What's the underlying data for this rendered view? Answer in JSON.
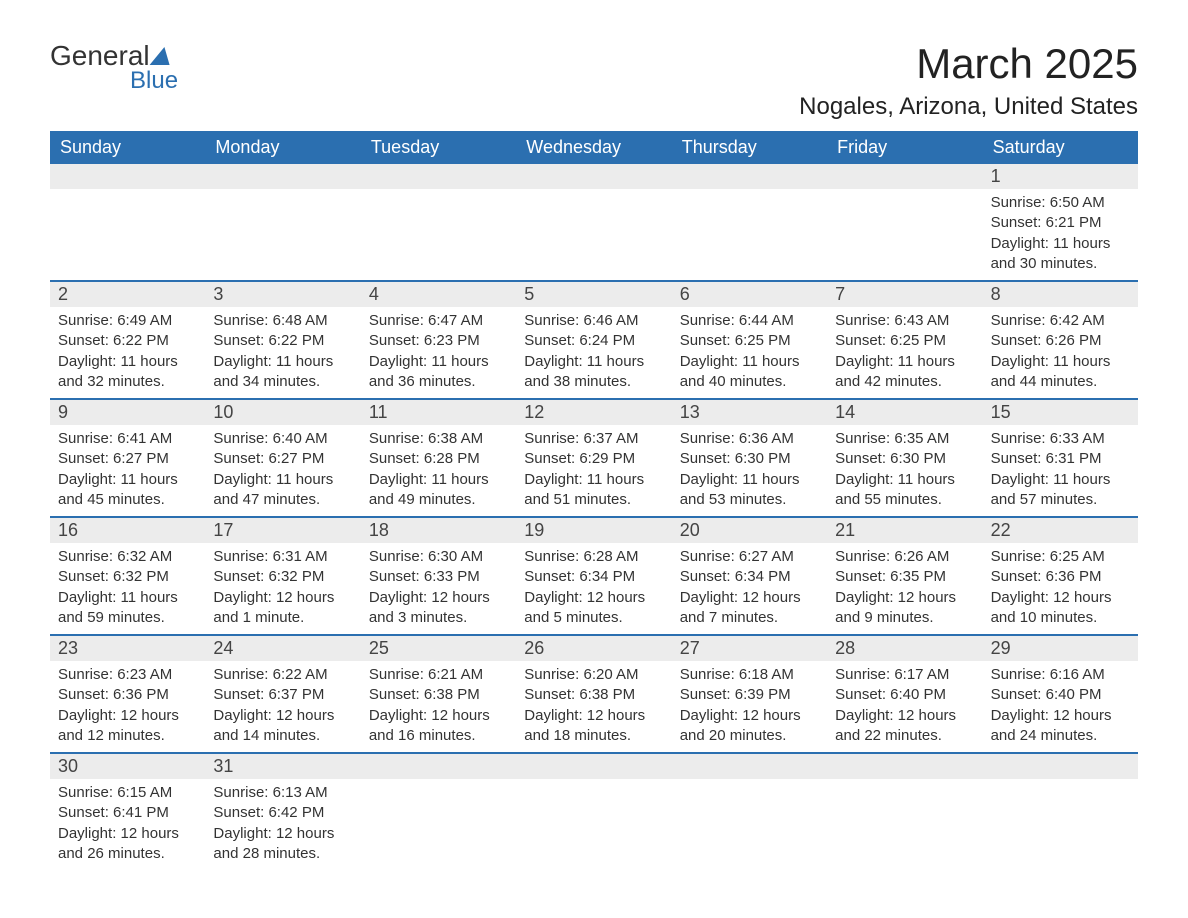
{
  "logo": {
    "text_top": "General",
    "text_bottom": "Blue"
  },
  "header": {
    "month_title": "March 2025",
    "location": "Nogales, Arizona, United States"
  },
  "colors": {
    "header_bg": "#2b6fb0",
    "header_text": "#ffffff",
    "day_num_bg": "#ececec",
    "text": "#333333",
    "border": "#2b6fb0"
  },
  "day_names": [
    "Sunday",
    "Monday",
    "Tuesday",
    "Wednesday",
    "Thursday",
    "Friday",
    "Saturday"
  ],
  "weeks": [
    [
      {
        "num": "",
        "sunrise": "",
        "sunset": "",
        "daylight": ""
      },
      {
        "num": "",
        "sunrise": "",
        "sunset": "",
        "daylight": ""
      },
      {
        "num": "",
        "sunrise": "",
        "sunset": "",
        "daylight": ""
      },
      {
        "num": "",
        "sunrise": "",
        "sunset": "",
        "daylight": ""
      },
      {
        "num": "",
        "sunrise": "",
        "sunset": "",
        "daylight": ""
      },
      {
        "num": "",
        "sunrise": "",
        "sunset": "",
        "daylight": ""
      },
      {
        "num": "1",
        "sunrise": "Sunrise: 6:50 AM",
        "sunset": "Sunset: 6:21 PM",
        "daylight": "Daylight: 11 hours and 30 minutes."
      }
    ],
    [
      {
        "num": "2",
        "sunrise": "Sunrise: 6:49 AM",
        "sunset": "Sunset: 6:22 PM",
        "daylight": "Daylight: 11 hours and 32 minutes."
      },
      {
        "num": "3",
        "sunrise": "Sunrise: 6:48 AM",
        "sunset": "Sunset: 6:22 PM",
        "daylight": "Daylight: 11 hours and 34 minutes."
      },
      {
        "num": "4",
        "sunrise": "Sunrise: 6:47 AM",
        "sunset": "Sunset: 6:23 PM",
        "daylight": "Daylight: 11 hours and 36 minutes."
      },
      {
        "num": "5",
        "sunrise": "Sunrise: 6:46 AM",
        "sunset": "Sunset: 6:24 PM",
        "daylight": "Daylight: 11 hours and 38 minutes."
      },
      {
        "num": "6",
        "sunrise": "Sunrise: 6:44 AM",
        "sunset": "Sunset: 6:25 PM",
        "daylight": "Daylight: 11 hours and 40 minutes."
      },
      {
        "num": "7",
        "sunrise": "Sunrise: 6:43 AM",
        "sunset": "Sunset: 6:25 PM",
        "daylight": "Daylight: 11 hours and 42 minutes."
      },
      {
        "num": "8",
        "sunrise": "Sunrise: 6:42 AM",
        "sunset": "Sunset: 6:26 PM",
        "daylight": "Daylight: 11 hours and 44 minutes."
      }
    ],
    [
      {
        "num": "9",
        "sunrise": "Sunrise: 6:41 AM",
        "sunset": "Sunset: 6:27 PM",
        "daylight": "Daylight: 11 hours and 45 minutes."
      },
      {
        "num": "10",
        "sunrise": "Sunrise: 6:40 AM",
        "sunset": "Sunset: 6:27 PM",
        "daylight": "Daylight: 11 hours and 47 minutes."
      },
      {
        "num": "11",
        "sunrise": "Sunrise: 6:38 AM",
        "sunset": "Sunset: 6:28 PM",
        "daylight": "Daylight: 11 hours and 49 minutes."
      },
      {
        "num": "12",
        "sunrise": "Sunrise: 6:37 AM",
        "sunset": "Sunset: 6:29 PM",
        "daylight": "Daylight: 11 hours and 51 minutes."
      },
      {
        "num": "13",
        "sunrise": "Sunrise: 6:36 AM",
        "sunset": "Sunset: 6:30 PM",
        "daylight": "Daylight: 11 hours and 53 minutes."
      },
      {
        "num": "14",
        "sunrise": "Sunrise: 6:35 AM",
        "sunset": "Sunset: 6:30 PM",
        "daylight": "Daylight: 11 hours and 55 minutes."
      },
      {
        "num": "15",
        "sunrise": "Sunrise: 6:33 AM",
        "sunset": "Sunset: 6:31 PM",
        "daylight": "Daylight: 11 hours and 57 minutes."
      }
    ],
    [
      {
        "num": "16",
        "sunrise": "Sunrise: 6:32 AM",
        "sunset": "Sunset: 6:32 PM",
        "daylight": "Daylight: 11 hours and 59 minutes."
      },
      {
        "num": "17",
        "sunrise": "Sunrise: 6:31 AM",
        "sunset": "Sunset: 6:32 PM",
        "daylight": "Daylight: 12 hours and 1 minute."
      },
      {
        "num": "18",
        "sunrise": "Sunrise: 6:30 AM",
        "sunset": "Sunset: 6:33 PM",
        "daylight": "Daylight: 12 hours and 3 minutes."
      },
      {
        "num": "19",
        "sunrise": "Sunrise: 6:28 AM",
        "sunset": "Sunset: 6:34 PM",
        "daylight": "Daylight: 12 hours and 5 minutes."
      },
      {
        "num": "20",
        "sunrise": "Sunrise: 6:27 AM",
        "sunset": "Sunset: 6:34 PM",
        "daylight": "Daylight: 12 hours and 7 minutes."
      },
      {
        "num": "21",
        "sunrise": "Sunrise: 6:26 AM",
        "sunset": "Sunset: 6:35 PM",
        "daylight": "Daylight: 12 hours and 9 minutes."
      },
      {
        "num": "22",
        "sunrise": "Sunrise: 6:25 AM",
        "sunset": "Sunset: 6:36 PM",
        "daylight": "Daylight: 12 hours and 10 minutes."
      }
    ],
    [
      {
        "num": "23",
        "sunrise": "Sunrise: 6:23 AM",
        "sunset": "Sunset: 6:36 PM",
        "daylight": "Daylight: 12 hours and 12 minutes."
      },
      {
        "num": "24",
        "sunrise": "Sunrise: 6:22 AM",
        "sunset": "Sunset: 6:37 PM",
        "daylight": "Daylight: 12 hours and 14 minutes."
      },
      {
        "num": "25",
        "sunrise": "Sunrise: 6:21 AM",
        "sunset": "Sunset: 6:38 PM",
        "daylight": "Daylight: 12 hours and 16 minutes."
      },
      {
        "num": "26",
        "sunrise": "Sunrise: 6:20 AM",
        "sunset": "Sunset: 6:38 PM",
        "daylight": "Daylight: 12 hours and 18 minutes."
      },
      {
        "num": "27",
        "sunrise": "Sunrise: 6:18 AM",
        "sunset": "Sunset: 6:39 PM",
        "daylight": "Daylight: 12 hours and 20 minutes."
      },
      {
        "num": "28",
        "sunrise": "Sunrise: 6:17 AM",
        "sunset": "Sunset: 6:40 PM",
        "daylight": "Daylight: 12 hours and 22 minutes."
      },
      {
        "num": "29",
        "sunrise": "Sunrise: 6:16 AM",
        "sunset": "Sunset: 6:40 PM",
        "daylight": "Daylight: 12 hours and 24 minutes."
      }
    ],
    [
      {
        "num": "30",
        "sunrise": "Sunrise: 6:15 AM",
        "sunset": "Sunset: 6:41 PM",
        "daylight": "Daylight: 12 hours and 26 minutes."
      },
      {
        "num": "31",
        "sunrise": "Sunrise: 6:13 AM",
        "sunset": "Sunset: 6:42 PM",
        "daylight": "Daylight: 12 hours and 28 minutes."
      },
      {
        "num": "",
        "sunrise": "",
        "sunset": "",
        "daylight": ""
      },
      {
        "num": "",
        "sunrise": "",
        "sunset": "",
        "daylight": ""
      },
      {
        "num": "",
        "sunrise": "",
        "sunset": "",
        "daylight": ""
      },
      {
        "num": "",
        "sunrise": "",
        "sunset": "",
        "daylight": ""
      },
      {
        "num": "",
        "sunrise": "",
        "sunset": "",
        "daylight": ""
      }
    ]
  ]
}
